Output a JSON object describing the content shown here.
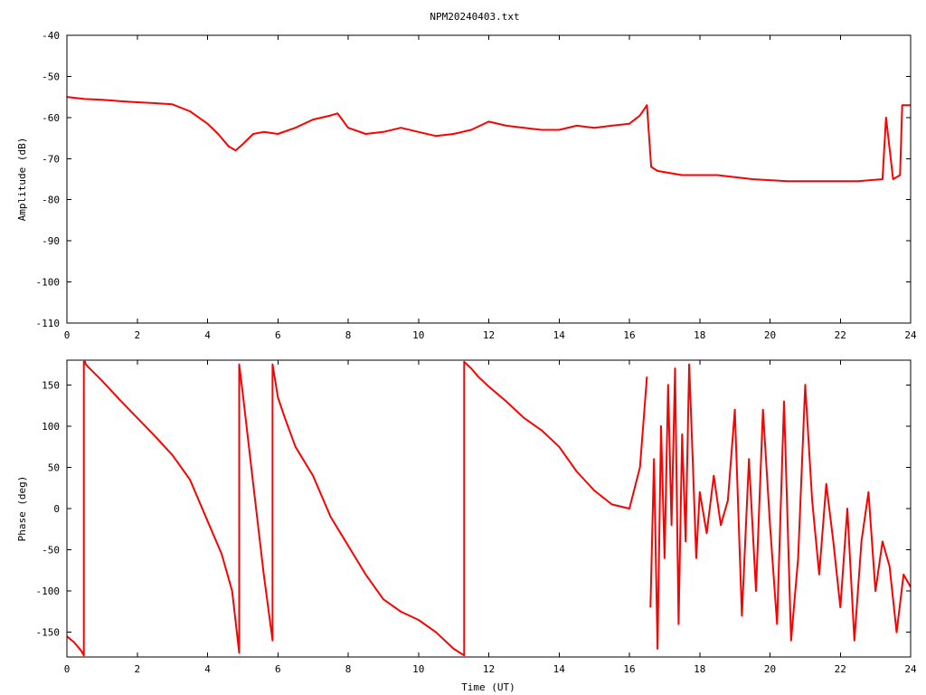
{
  "title": "NPM20240403.txt",
  "colors": {
    "series": "#ff0000",
    "axis": "#000000",
    "background": "#ffffff"
  },
  "chart_data": [
    {
      "type": "line",
      "title": "NPM20240403.txt",
      "ylabel": "Amplitude (dB)",
      "xlabel": "",
      "xlim": [
        0,
        24
      ],
      "ylim": [
        -110,
        -40
      ],
      "xticks": [
        0,
        2,
        4,
        6,
        8,
        10,
        12,
        14,
        16,
        18,
        20,
        22,
        24
      ],
      "yticks": [
        -110,
        -100,
        -90,
        -80,
        -70,
        -60,
        -50,
        -40
      ],
      "grid": false,
      "series": [
        {
          "x": [
            0,
            0.5,
            1,
            1.5,
            2,
            2.5,
            3,
            3.5,
            4,
            4.3,
            4.6,
            4.8,
            5.0,
            5.3,
            5.6,
            6.0,
            6.5,
            7.0,
            7.5,
            7.7,
            8.0,
            8.5,
            9.0,
            9.5,
            10.0,
            10.5,
            11.0,
            11.5,
            12.0,
            12.5,
            13.0,
            13.5,
            14.0,
            14.5,
            15.0,
            15.5,
            16.0,
            16.3,
            16.5,
            16.62,
            16.8,
            17.5,
            18.5,
            19.5,
            20.5,
            21.5,
            22.5,
            23.2,
            23.3,
            23.5,
            23.7,
            23.76,
            24
          ],
          "y": [
            -55,
            -55.5,
            -55.7,
            -56,
            -56.3,
            -56.5,
            -56.8,
            -58.5,
            -61.5,
            -64,
            -67,
            -68,
            -66.5,
            -64,
            -63.5,
            -64,
            -62.5,
            -60.5,
            -59.5,
            -59,
            -62.5,
            -64,
            -63.5,
            -62.5,
            -63.5,
            -64.5,
            -64,
            -63,
            -61,
            -62,
            -62.5,
            -63,
            -63,
            -62,
            -62.5,
            -62,
            -61.5,
            -59.5,
            -57,
            -72,
            -73,
            -74,
            -74,
            -75,
            -75.5,
            -75.5,
            -75.5,
            -75,
            -60,
            -75,
            -74,
            -57,
            -57
          ]
        }
      ]
    },
    {
      "type": "line",
      "ylabel": "Phase (deg)",
      "xlabel": "Time (UT)",
      "xlim": [
        0,
        24
      ],
      "ylim": [
        -180,
        180
      ],
      "xticks": [
        0,
        2,
        4,
        6,
        8,
        10,
        12,
        14,
        16,
        18,
        20,
        22,
        24
      ],
      "yticks": [
        -150,
        -100,
        -50,
        0,
        50,
        100,
        150
      ],
      "grid": false,
      "series": [
        {
          "x": [
            0,
            0.2,
            0.4,
            0.48,
            0.48,
            0.52,
            0.52,
            0.6,
            1.0,
            1.5,
            2.0,
            2.5,
            3.0,
            3.5,
            4.0,
            4.4,
            4.7,
            4.9,
            4.9,
            5.0,
            5.3,
            5.6,
            5.85,
            5.85,
            6.0,
            6.2,
            6.5,
            7.0,
            7.5,
            8.0,
            8.5,
            9.0,
            9.5,
            10.0,
            10.5,
            11.0,
            11.3,
            11.3,
            11.5,
            11.7,
            12.0,
            12.5,
            13.0,
            13.5,
            14.0,
            14.5,
            15.0,
            15.5,
            16.0,
            16.3,
            16.5
          ],
          "y": [
            -155,
            -162,
            -172,
            -178,
            178,
            178,
            176,
            172,
            155,
            132,
            110,
            88,
            65,
            35,
            -15,
            -55,
            -100,
            -175,
            175,
            140,
            30,
            -80,
            -160,
            175,
            135,
            110,
            75,
            40,
            -10,
            -45,
            -80,
            -110,
            -125,
            -135,
            -150,
            -170,
            -178,
            178,
            170,
            160,
            148,
            130,
            110,
            95,
            75,
            45,
            22,
            5,
            0,
            50,
            160
          ]
        },
        {
          "x": [
            16.6,
            16.7,
            16.8,
            16.9,
            17.0,
            17.1,
            17.2,
            17.3,
            17.4,
            17.5,
            17.6,
            17.7,
            17.8,
            17.9,
            18.0,
            18.2,
            18.4,
            18.6,
            18.8,
            19.0,
            19.2,
            19.4,
            19.6,
            19.8,
            20.0,
            20.2,
            20.4,
            20.6,
            20.8,
            21.0,
            21.2,
            21.4,
            21.6,
            21.8,
            22.0,
            22.2,
            22.4,
            22.6,
            22.8,
            23.0,
            23.2,
            23.4,
            23.6,
            23.8,
            24.0
          ],
          "y": [
            -120,
            60,
            -170,
            100,
            -60,
            150,
            -20,
            170,
            -140,
            90,
            -40,
            175,
            60,
            -60,
            20,
            -30,
            40,
            -20,
            10,
            120,
            -130,
            60,
            -100,
            120,
            -20,
            -140,
            130,
            -160,
            -60,
            150,
            10,
            -80,
            30,
            -40,
            -120,
            0,
            -160,
            -40,
            20,
            -100,
            -40,
            -70,
            -150,
            -80,
            -95
          ]
        }
      ]
    }
  ]
}
